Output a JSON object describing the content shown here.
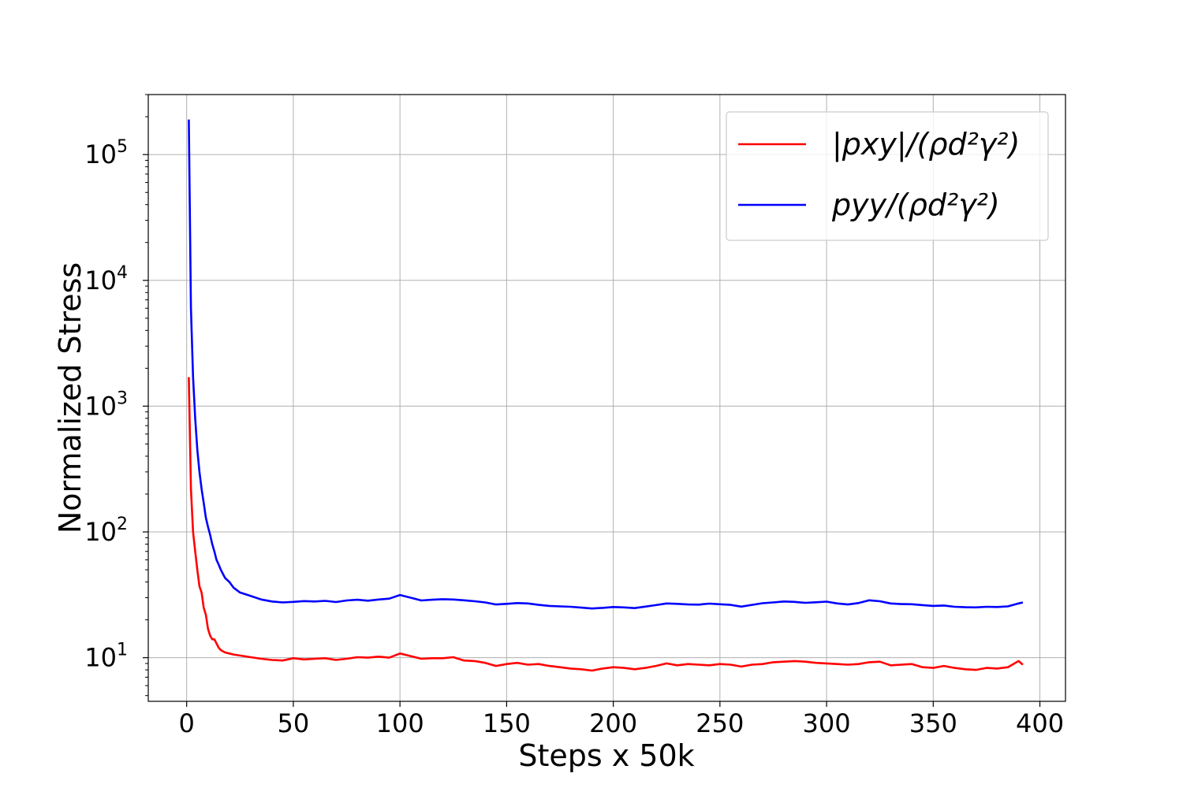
{
  "chart_data": {
    "type": "line",
    "title": "",
    "xlabel": "Steps x 50k",
    "ylabel": "Normalized Stress",
    "xlim": [
      -18,
      412
    ],
    "ylim": [
      4.5,
      300000
    ],
    "yscale": "log",
    "grid": true,
    "legend_position": "top-right",
    "x_ticks": [
      0,
      50,
      100,
      150,
      200,
      250,
      300,
      350,
      400
    ],
    "y_ticks": [
      {
        "value": 10,
        "base": "10",
        "exp": "1"
      },
      {
        "value": 100,
        "base": "10",
        "exp": "2"
      },
      {
        "value": 1000,
        "base": "10",
        "exp": "3"
      },
      {
        "value": 10000,
        "base": "10",
        "exp": "4"
      },
      {
        "value": 100000,
        "base": "10",
        "exp": "5"
      }
    ],
    "series": [
      {
        "name": "|p_xy|/(ρd²γ²)",
        "legend_label": "|pxy|/(ρd²γ²)",
        "color": "#ff0000",
        "x": [
          1,
          2,
          3,
          4,
          5,
          6,
          7,
          8,
          9,
          10,
          11,
          12,
          13,
          14,
          15,
          16,
          18,
          20,
          22,
          25,
          30,
          35,
          40,
          45,
          50,
          55,
          60,
          65,
          70,
          75,
          80,
          85,
          90,
          95,
          100,
          105,
          110,
          115,
          120,
          125,
          130,
          135,
          140,
          145,
          150,
          155,
          160,
          165,
          170,
          175,
          180,
          185,
          190,
          195,
          200,
          205,
          210,
          215,
          220,
          225,
          230,
          235,
          240,
          245,
          250,
          255,
          260,
          265,
          270,
          275,
          280,
          285,
          290,
          295,
          300,
          305,
          310,
          315,
          320,
          325,
          330,
          335,
          340,
          345,
          350,
          355,
          360,
          365,
          370,
          375,
          380,
          385,
          390,
          392
        ],
        "y": [
          1700,
          220,
          100,
          70,
          50,
          37,
          33,
          25,
          22,
          17,
          15,
          14,
          14,
          13,
          12,
          11.5,
          11,
          10.8,
          10.6,
          10.4,
          10.1,
          9.8,
          9.6,
          9.5,
          9.9,
          9.7,
          9.8,
          9.9,
          9.6,
          9.8,
          10.1,
          10.0,
          10.2,
          10.0,
          10.8,
          10.3,
          9.8,
          9.9,
          9.9,
          10.1,
          9.5,
          9.4,
          9.1,
          8.6,
          8.9,
          9.1,
          8.8,
          8.9,
          8.6,
          8.4,
          8.2,
          8.1,
          7.9,
          8.2,
          8.4,
          8.3,
          8.1,
          8.3,
          8.6,
          9.0,
          8.7,
          8.9,
          8.8,
          8.7,
          8.9,
          8.8,
          8.5,
          8.8,
          8.9,
          9.2,
          9.3,
          9.4,
          9.3,
          9.1,
          9.0,
          8.9,
          8.8,
          8.9,
          9.2,
          9.3,
          8.7,
          8.8,
          8.9,
          8.4,
          8.3,
          8.6,
          8.3,
          8.1,
          8.0,
          8.3,
          8.2,
          8.4,
          9.4,
          8.8
        ]
      },
      {
        "name": "p_yy/(ρd²γ²)",
        "legend_label": "pyy/(ρd²γ²)",
        "color": "#0000ff",
        "x": [
          1,
          2,
          3,
          4,
          5,
          6,
          7,
          8,
          9,
          10,
          11,
          12,
          13,
          14,
          15,
          16,
          18,
          20,
          22,
          25,
          30,
          35,
          40,
          45,
          50,
          55,
          60,
          65,
          70,
          75,
          80,
          85,
          90,
          95,
          100,
          105,
          110,
          115,
          120,
          125,
          130,
          135,
          140,
          145,
          150,
          155,
          160,
          165,
          170,
          175,
          180,
          185,
          190,
          195,
          200,
          205,
          210,
          215,
          220,
          225,
          230,
          235,
          240,
          245,
          250,
          255,
          260,
          265,
          270,
          275,
          280,
          285,
          290,
          295,
          300,
          305,
          310,
          315,
          320,
          325,
          330,
          335,
          340,
          345,
          350,
          355,
          360,
          365,
          370,
          375,
          380,
          385,
          390,
          392
        ],
        "y": [
          190000,
          6000,
          1700,
          800,
          450,
          300,
          220,
          170,
          130,
          110,
          95,
          80,
          70,
          60,
          55,
          50,
          43,
          40,
          36,
          33,
          31,
          29,
          28,
          27.5,
          27.8,
          28.2,
          28.0,
          28.3,
          27.7,
          28.5,
          28.9,
          28.4,
          29.0,
          29.5,
          31.5,
          30.0,
          28.5,
          28.9,
          29.2,
          29.0,
          28.6,
          28.1,
          27.5,
          26.5,
          26.8,
          27.2,
          27.0,
          26.3,
          25.8,
          25.6,
          25.4,
          25.0,
          24.6,
          24.9,
          25.3,
          25.1,
          24.8,
          25.5,
          26.2,
          27.0,
          26.8,
          26.5,
          26.4,
          26.9,
          26.6,
          26.3,
          25.5,
          26.3,
          27.1,
          27.5,
          28.0,
          27.8,
          27.3,
          27.6,
          27.9,
          27.0,
          26.5,
          27.2,
          28.6,
          28.1,
          27.0,
          26.7,
          26.6,
          26.2,
          25.8,
          26.0,
          25.4,
          25.2,
          25.1,
          25.4,
          25.3,
          25.6,
          27.0,
          27.5
        ]
      }
    ]
  }
}
